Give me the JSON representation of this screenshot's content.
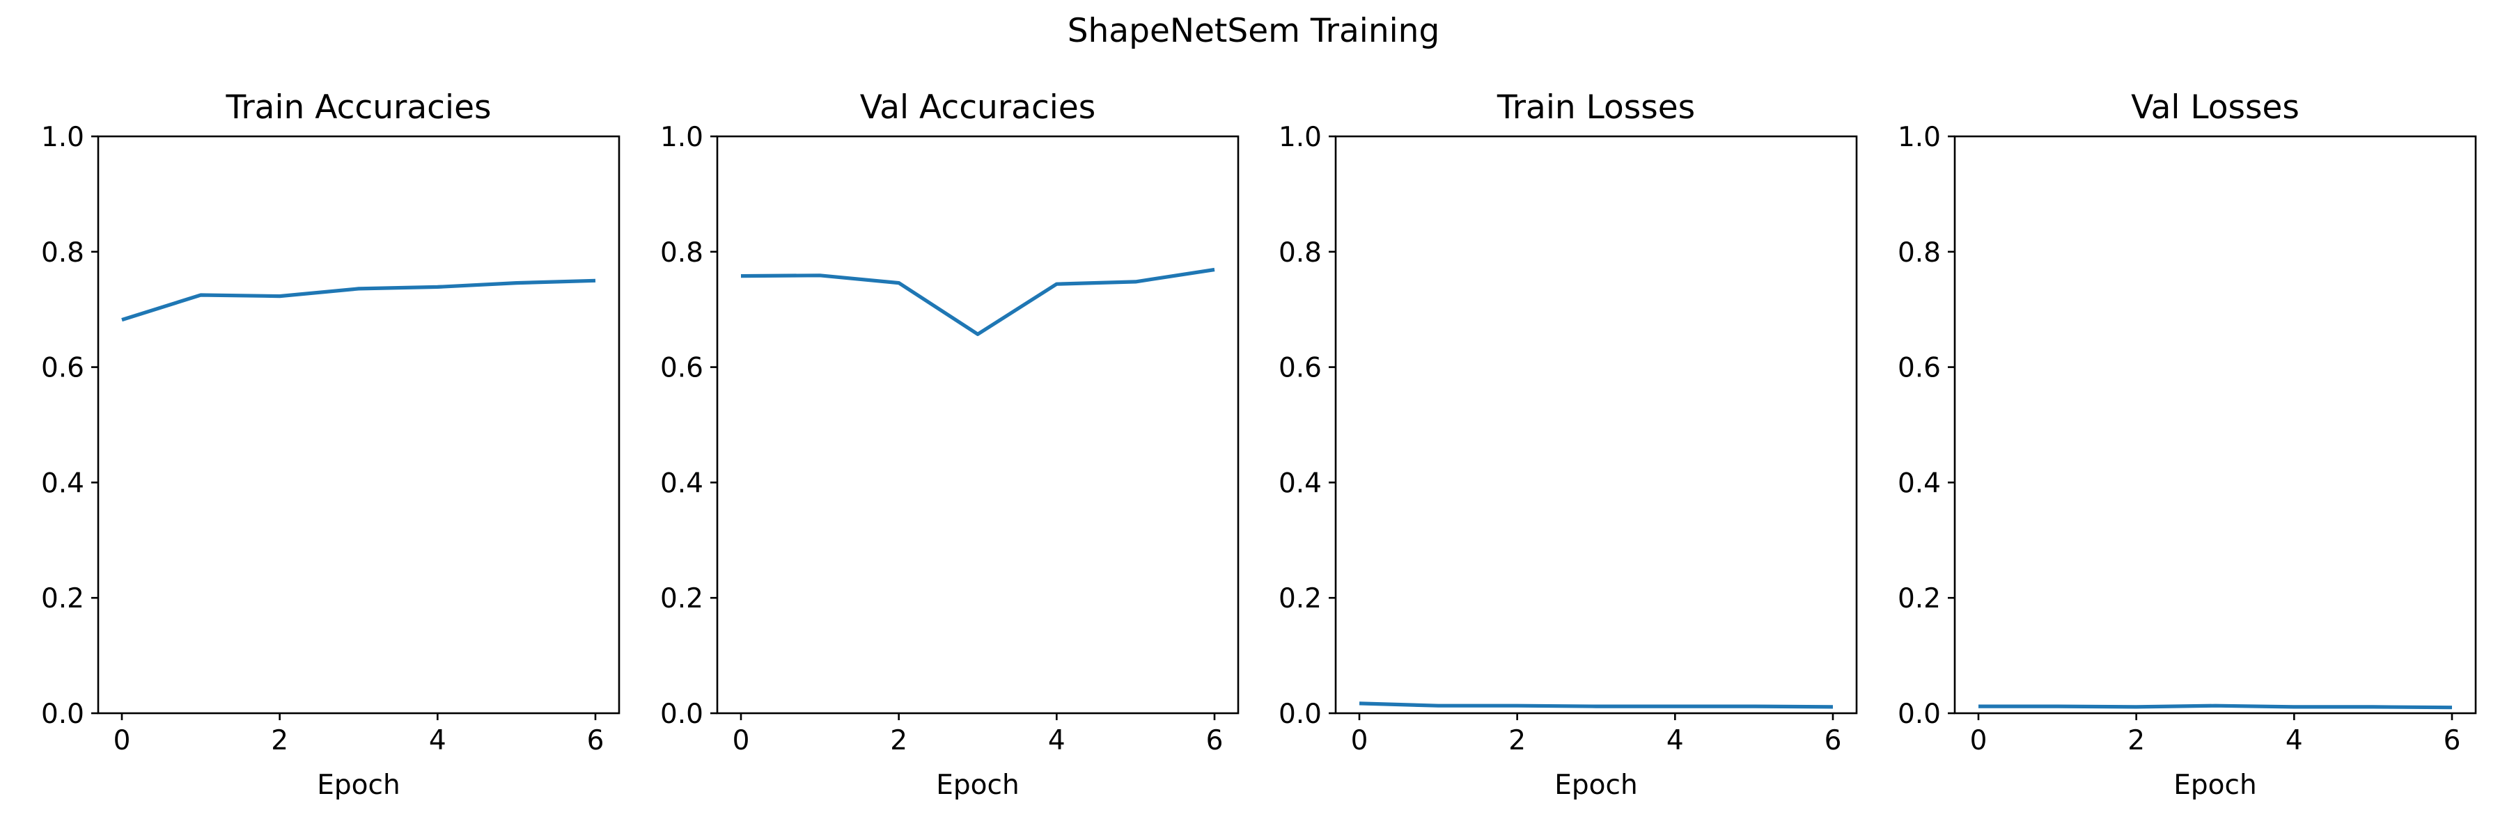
{
  "figure": {
    "suptitle": "ShapeNetSem Training"
  },
  "colors": {
    "line": "#1f77b4",
    "axes": "#000000",
    "background": "#ffffff"
  },
  "chart_data": [
    {
      "type": "line",
      "title": "Train Accuracies",
      "xlabel": "Epoch",
      "ylabel": "",
      "x": [
        0,
        1,
        2,
        3,
        4,
        5,
        6
      ],
      "series": [
        {
          "values": [
            0.682,
            0.725,
            0.723,
            0.736,
            0.739,
            0.746,
            0.75
          ]
        }
      ],
      "xlim": [
        -0.3,
        6.3
      ],
      "ylim": [
        0.0,
        1.0
      ],
      "xticks": [
        "0",
        "2",
        "4",
        "6"
      ],
      "yticks": [
        "0.0",
        "0.2",
        "0.4",
        "0.6",
        "0.8",
        "1.0"
      ],
      "grid": false
    },
    {
      "type": "line",
      "title": "Val Accuracies",
      "xlabel": "Epoch",
      "ylabel": "",
      "x": [
        0,
        1,
        2,
        3,
        4,
        5,
        6
      ],
      "series": [
        {
          "values": [
            0.758,
            0.759,
            0.746,
            0.657,
            0.744,
            0.748,
            0.769
          ]
        }
      ],
      "xlim": [
        -0.3,
        6.3
      ],
      "ylim": [
        0.0,
        1.0
      ],
      "xticks": [
        "0",
        "2",
        "4",
        "6"
      ],
      "yticks": [
        "0.0",
        "0.2",
        "0.4",
        "0.6",
        "0.8",
        "1.0"
      ],
      "grid": false
    },
    {
      "type": "line",
      "title": "Train Losses",
      "xlabel": "Epoch",
      "ylabel": "",
      "x": [
        0,
        1,
        2,
        3,
        4,
        5,
        6
      ],
      "series": [
        {
          "values": [
            0.017,
            0.013,
            0.013,
            0.012,
            0.012,
            0.012,
            0.011
          ]
        }
      ],
      "xlim": [
        -0.3,
        6.3
      ],
      "ylim": [
        0.0,
        1.0
      ],
      "xticks": [
        "0",
        "2",
        "4",
        "6"
      ],
      "yticks": [
        "0.0",
        "0.2",
        "0.4",
        "0.6",
        "0.8",
        "1.0"
      ],
      "grid": false
    },
    {
      "type": "line",
      "title": "Val Losses",
      "xlabel": "Epoch",
      "ylabel": "",
      "x": [
        0,
        1,
        2,
        3,
        4,
        5,
        6
      ],
      "series": [
        {
          "values": [
            0.012,
            0.012,
            0.011,
            0.013,
            0.011,
            0.011,
            0.01
          ]
        }
      ],
      "xlim": [
        -0.3,
        6.3
      ],
      "ylim": [
        0.0,
        1.0
      ],
      "xticks": [
        "0",
        "2",
        "4",
        "6"
      ],
      "yticks": [
        "0.0",
        "0.2",
        "0.4",
        "0.6",
        "0.8",
        "1.0"
      ],
      "grid": false
    }
  ]
}
